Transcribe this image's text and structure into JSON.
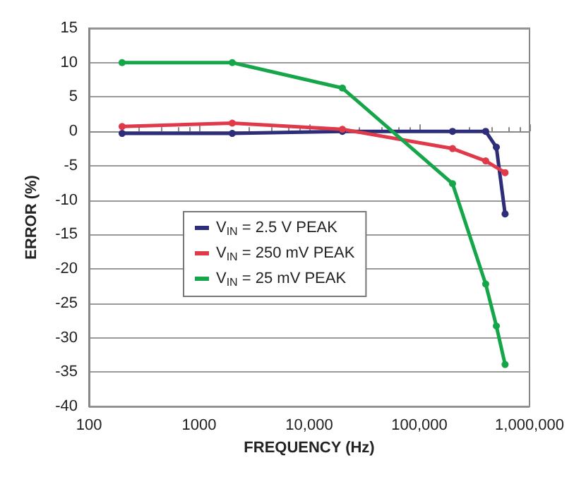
{
  "chart_data": {
    "type": "line",
    "xlabel": "FREQUENCY (Hz)",
    "ylabel": "ERROR (%)",
    "log": "x",
    "xlim": [
      100,
      1000000
    ],
    "xticks": [
      100,
      1000,
      {
        "value": 10000,
        "label": "10,000"
      },
      {
        "value": 100000,
        "label": "100,000"
      },
      {
        "value": 1000000,
        "label": "1,000,000"
      }
    ],
    "ylim": [
      -40,
      15
    ],
    "yticks": [
      -40,
      -35,
      -30,
      -25,
      -20,
      -15,
      -10,
      -5,
      0,
      5,
      10,
      15
    ],
    "grid": "y",
    "legend": "left",
    "marker": "circle",
    "line_style": "solid",
    "series": [
      {
        "name": "V$_{IN}$ = 2.5 V PEAK",
        "color": "#2e2d7a",
        "x": [
          200,
          2000,
          20000,
          200000,
          400000,
          500000,
          600000
        ],
        "values": [
          -0.3,
          -0.3,
          0,
          0,
          0,
          -2.3,
          -12
        ]
      },
      {
        "name": "V$_{IN}$ = 250 mV PEAK",
        "color": "#e03a4a",
        "x": [
          200,
          2000,
          20000,
          200000,
          400000,
          600000
        ],
        "values": [
          0.7,
          1.2,
          0.3,
          -2.5,
          -4.3,
          -6
        ]
      },
      {
        "name": "V$_{IN}$ = 25 mV PEAK",
        "color": "#16a64a",
        "x": [
          200,
          2000,
          20000,
          200000,
          400000,
          500000,
          600000
        ],
        "values": [
          10,
          10,
          6.3,
          -7.6,
          -22.2,
          -28.3,
          -33.9
        ]
      }
    ]
  }
}
